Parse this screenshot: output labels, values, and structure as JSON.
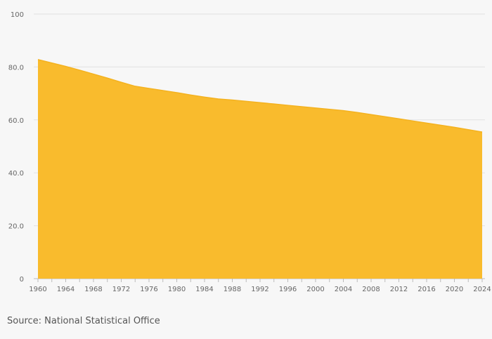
{
  "chart_data": {
    "type": "area",
    "x": [
      1960,
      1962,
      1964,
      1966,
      1968,
      1970,
      1972,
      1974,
      1976,
      1978,
      1980,
      1982,
      1984,
      1986,
      1988,
      1990,
      1992,
      1994,
      1996,
      1998,
      2000,
      2002,
      2004,
      2006,
      2008,
      2010,
      2012,
      2014,
      2016,
      2018,
      2020,
      2022,
      2024
    ],
    "series": [
      {
        "values": [
          82.8,
          81.5,
          80.2,
          78.8,
          77.3,
          75.8,
          74.2,
          72.7,
          71.9,
          71.1,
          70.3,
          69.4,
          68.6,
          67.9,
          67.5,
          67.0,
          66.5,
          66.0,
          65.5,
          65.0,
          64.5,
          64.0,
          63.5,
          62.8,
          62.0,
          61.2,
          60.4,
          59.6,
          58.8,
          58.0,
          57.2,
          56.3,
          55.4
        ],
        "color": "#f9bb2d"
      }
    ],
    "xticks": [
      "1960",
      "1964",
      "1968",
      "1972",
      "1976",
      "1980",
      "1984",
      "1988",
      "1992",
      "1996",
      "2000",
      "2004",
      "2008",
      "2012",
      "2016",
      "2020",
      "2024"
    ],
    "yticks": [
      "0",
      "20.0",
      "40.0",
      "60.0",
      "80.0",
      "100"
    ],
    "ylim": [
      0,
      100
    ],
    "xlim": [
      1960,
      2024
    ],
    "grid": true,
    "legend": "none"
  },
  "source": "Source: National Statistical Office"
}
